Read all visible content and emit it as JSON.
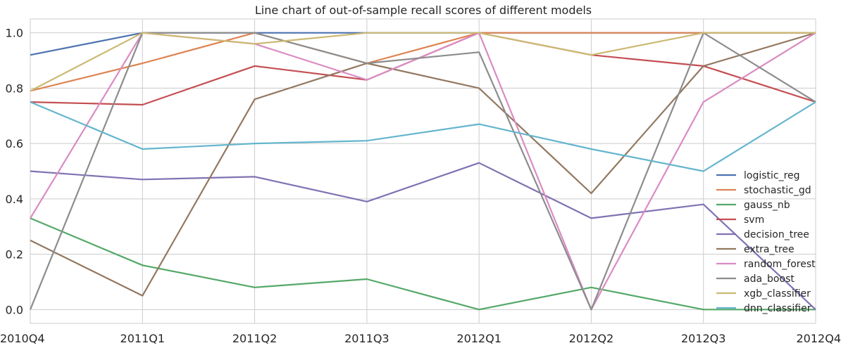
{
  "chart_data": {
    "type": "line",
    "title": "Line chart of out-of-sample recall scores of different models",
    "xlabel": "",
    "ylabel": "",
    "categories": [
      "2010Q4",
      "2011Q1",
      "2011Q2",
      "2011Q3",
      "2012Q1",
      "2012Q2",
      "2012Q3",
      "2012Q4"
    ],
    "ylim": [
      -0.05,
      1.05
    ],
    "yticks": [
      "0.0",
      "0.2",
      "0.4",
      "0.6",
      "0.8",
      "1.0"
    ],
    "grid": true,
    "legend_position": "lower-right",
    "series": [
      {
        "name": "logistic_reg",
        "color": "#4c72b0",
        "values": [
          0.92,
          1.0,
          1.0,
          1.0,
          1.0,
          1.0,
          1.0,
          1.0
        ]
      },
      {
        "name": "stochastic_gd",
        "color": "#dd8452",
        "values": [
          0.79,
          0.89,
          1.0,
          0.89,
          1.0,
          1.0,
          1.0,
          1.0
        ]
      },
      {
        "name": "gauss_nb",
        "color": "#55a868",
        "values": [
          0.33,
          0.16,
          0.08,
          0.11,
          0.0,
          0.08,
          0.0,
          0.0
        ]
      },
      {
        "name": "svm",
        "color": "#c44e52",
        "values": [
          0.75,
          0.74,
          0.88,
          0.83,
          1.0,
          0.92,
          0.88,
          0.75
        ]
      },
      {
        "name": "decision_tree",
        "color": "#8172b3",
        "values": [
          0.5,
          0.47,
          0.48,
          0.39,
          0.53,
          0.33,
          0.38,
          0.0
        ]
      },
      {
        "name": "extra_tree",
        "color": "#937860",
        "values": [
          0.25,
          0.05,
          0.76,
          0.89,
          0.8,
          0.42,
          0.88,
          1.0
        ]
      },
      {
        "name": "random_forest",
        "color": "#da8bc3",
        "values": [
          0.33,
          1.0,
          0.96,
          0.83,
          1.0,
          0.0,
          0.75,
          1.0
        ]
      },
      {
        "name": "ada_boost",
        "color": "#8c8c8c",
        "values": [
          0.0,
          1.0,
          1.0,
          0.89,
          0.93,
          0.0,
          1.0,
          0.75
        ]
      },
      {
        "name": "xgb_classifier",
        "color": "#ccb974",
        "values": [
          0.79,
          1.0,
          0.96,
          1.0,
          1.0,
          0.92,
          1.0,
          1.0
        ]
      },
      {
        "name": "dnn_classifier",
        "color": "#64b5cd",
        "values": [
          0.75,
          0.58,
          0.6,
          0.61,
          0.67,
          0.58,
          0.5,
          0.75
        ]
      }
    ]
  }
}
